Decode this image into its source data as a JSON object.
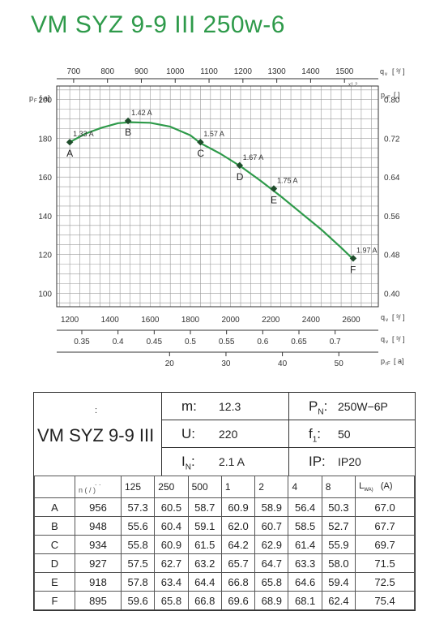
{
  "title": "VM SYZ 9-9 III 250w-6",
  "chart_data": {
    "type": "line",
    "primary_x_label": "1200",
    "x_top": {
      "label": "q",
      "subscript": "v",
      "unit": "[    ³/    ]",
      "ticks": [
        700,
        800,
        900,
        1000,
        1100,
        1200,
        1300,
        1400,
        1500
      ],
      "range": [
        650,
        1600
      ],
      "note": "x1.2"
    },
    "x_bottom": {
      "label": "q",
      "subscript": "v",
      "unit": "[  ³/  ]",
      "ticks": [
        1200,
        1400,
        1600,
        1800,
        2000,
        2200,
        2400,
        2600
      ],
      "range": [
        1135,
        2735
      ]
    },
    "x_bottom2": {
      "label": "q",
      "subscript": "v",
      "unit": "[  ³/  ]",
      "ticks": [
        0.35,
        0.4,
        0.45,
        0.5,
        0.55,
        0.6,
        0.65,
        0.7
      ],
      "range": [
        0.3153,
        0.7597
      ]
    },
    "x_bottom3": {
      "label": "p",
      "subscript": "rF",
      "unit": "[   a]",
      "ticks": [
        20,
        30,
        40,
        50
      ],
      "range": [
        0,
        57
      ]
    },
    "y_left": {
      "label": "p",
      "subscript": "F",
      "unit": "[   a]",
      "ticks": [
        100,
        120,
        140,
        160,
        180,
        200
      ],
      "range": [
        93,
        207
      ]
    },
    "y_right": {
      "label": "p",
      "subscript": "rF",
      "unit": "[      ]",
      "ticks": [
        0.4,
        0.48,
        0.56,
        0.64,
        0.72,
        0.8
      ],
      "range": [
        0.372,
        0.828
      ]
    },
    "grid": true,
    "curve": {
      "color": "#2e9a4a",
      "x": [
        1200,
        1280,
        1360,
        1440,
        1500,
        1600,
        1700,
        1800,
        1850,
        1950,
        2050,
        2150,
        2250,
        2350,
        2450,
        2550,
        2610
      ],
      "y": [
        178,
        182.5,
        185.5,
        187.8,
        188.3,
        188,
        186,
        181.5,
        177.5,
        172,
        165.5,
        158,
        150,
        141.5,
        133,
        123.5,
        117.5
      ]
    },
    "points": [
      {
        "letter": "A",
        "current": "1.33 A",
        "x": 1200,
        "y": 178
      },
      {
        "letter": "B",
        "current": "1.42 A",
        "x": 1490,
        "y": 189
      },
      {
        "letter": "C",
        "current": "1.57 A",
        "x": 1850,
        "y": 178
      },
      {
        "letter": "D",
        "current": "1.67 A",
        "x": 2045,
        "y": 166
      },
      {
        "letter": "E",
        "current": "1.75 A",
        "x": 2215,
        "y": 154
      },
      {
        "letter": "F",
        "current": "1.97 A",
        "x": 2610,
        "y": 118
      }
    ]
  },
  "spec": {
    "model": "VM SYZ 9-9 III",
    "colon": ":",
    "m_label": "m:",
    "m_value": "12.3",
    "pn_label": "P",
    "pn_sub": "N",
    "pn_colon": ":",
    "pn_value": "250W−6P",
    "u_label": "U:",
    "u_value": "220",
    "f_label": "f",
    "f_sub": "1",
    "f_colon": ":",
    "f_value": "50",
    "in_label": "I",
    "in_sub": "N",
    "in_colon": ":",
    "in_value": "2.1  A",
    "ip_label": "IP:",
    "ip_value": "IP20"
  },
  "table": {
    "n_header": "n (   /   )",
    "n_header_top": ".      .",
    "bands": [
      "125",
      "250",
      "500",
      "1",
      "2",
      "4",
      "8"
    ],
    "lwa_header": "L",
    "lwa_sub": "WA)",
    "lwa_unit": "(A)",
    "rows": [
      {
        "label": "A",
        "n": "956",
        "v": [
          "57.3",
          "60.5",
          "58.7",
          "60.9",
          "58.9",
          "56.4",
          "50.3",
          "67.0"
        ]
      },
      {
        "label": "B",
        "n": "948",
        "v": [
          "55.6",
          "60.4",
          "59.1",
          "62.0",
          "60.7",
          "58.5",
          "52.7",
          "67.7"
        ]
      },
      {
        "label": "C",
        "n": "934",
        "v": [
          "55.8",
          "60.9",
          "61.5",
          "64.2",
          "62.9",
          "61.4",
          "55.9",
          "69.7"
        ]
      },
      {
        "label": "D",
        "n": "927",
        "v": [
          "57.5",
          "62.7",
          "63.2",
          "65.7",
          "64.7",
          "63.3",
          "58.0",
          "71.5"
        ]
      },
      {
        "label": "E",
        "n": "918",
        "v": [
          "57.8",
          "63.4",
          "64.4",
          "66.8",
          "65.8",
          "64.6",
          "59.4",
          "72.5"
        ]
      },
      {
        "label": "F",
        "n": "895",
        "v": [
          "59.6",
          "65.8",
          "66.8",
          "69.6",
          "68.9",
          "68.1",
          "62.4",
          "75.4"
        ]
      }
    ]
  }
}
